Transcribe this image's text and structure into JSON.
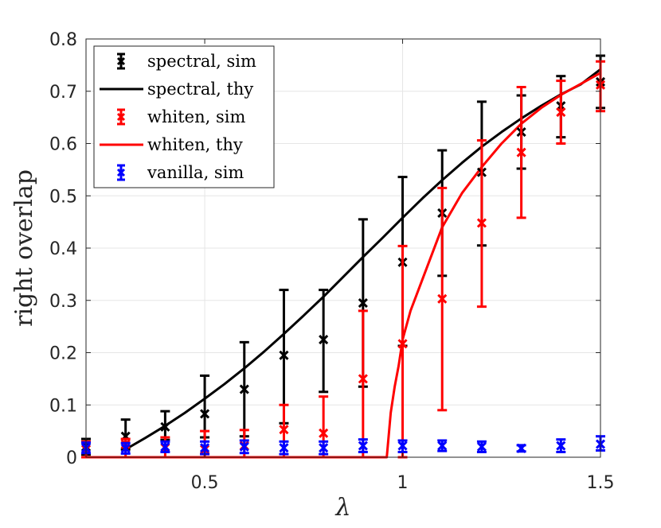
{
  "chart_data": {
    "type": "line",
    "title": "",
    "xlabel": "λ",
    "ylabel": "right overlap",
    "xlim": [
      0.2,
      1.5
    ],
    "ylim": [
      0,
      0.8
    ],
    "xticks": [
      0.5,
      1,
      1.5
    ],
    "xtick_labels": [
      "0.5",
      "1",
      "1.5"
    ],
    "yticks": [
      0,
      0.1,
      0.2,
      0.3,
      0.4,
      0.5,
      0.6,
      0.7,
      0.8
    ],
    "ytick_labels": [
      "0",
      "0.1",
      "0.2",
      "0.3",
      "0.4",
      "0.5",
      "0.6",
      "0.7",
      "0.8"
    ],
    "grid": true,
    "legend_position": "top-left",
    "series": [
      {
        "name": "spectral, sim",
        "kind": "errorbar",
        "color": "#000000",
        "x": [
          0.2,
          0.3,
          0.4,
          0.5,
          0.6,
          0.7,
          0.8,
          0.9,
          1.0,
          1.1,
          1.2,
          1.3,
          1.4,
          1.5
        ],
        "y": [
          0.02,
          0.04,
          0.058,
          0.083,
          0.13,
          0.195,
          0.225,
          0.295,
          0.373,
          0.467,
          0.545,
          0.622,
          0.672,
          0.718
        ],
        "err_low": [
          0.015,
          0.025,
          0.025,
          0.045,
          0.09,
          0.13,
          0.1,
          0.16,
          0.16,
          0.12,
          0.14,
          0.07,
          0.06,
          0.05
        ],
        "err_high": [
          0.015,
          0.032,
          0.03,
          0.073,
          0.09,
          0.125,
          0.095,
          0.16,
          0.163,
          0.12,
          0.135,
          0.07,
          0.057,
          0.05
        ]
      },
      {
        "name": "spectral, thy",
        "kind": "line",
        "color": "#000000",
        "x": [
          0.3,
          0.35,
          0.4,
          0.45,
          0.5,
          0.55,
          0.6,
          0.65,
          0.7,
          0.75,
          0.8,
          0.85,
          0.9,
          0.95,
          1.0,
          1.05,
          1.1,
          1.15,
          1.2,
          1.25,
          1.3,
          1.35,
          1.4,
          1.45,
          1.5
        ],
        "y": [
          0.015,
          0.037,
          0.06,
          0.085,
          0.112,
          0.14,
          0.17,
          0.202,
          0.236,
          0.271,
          0.307,
          0.345,
          0.383,
          0.42,
          0.458,
          0.495,
          0.53,
          0.563,
          0.594,
          0.622,
          0.648,
          0.672,
          0.694,
          0.713,
          0.742
        ]
      },
      {
        "name": "whiten, sim",
        "kind": "errorbar",
        "color": "#ff0000",
        "x": [
          0.2,
          0.3,
          0.4,
          0.5,
          0.6,
          0.7,
          0.8,
          0.9,
          1.0,
          1.1,
          1.2,
          1.3,
          1.4,
          1.5
        ],
        "y": [
          0.015,
          0.025,
          0.018,
          0.015,
          0.022,
          0.053,
          0.046,
          0.15,
          0.217,
          0.303,
          0.448,
          0.583,
          0.66,
          0.712
        ],
        "err_low": [
          0.015,
          0.025,
          0.018,
          0.015,
          0.022,
          0.053,
          0.046,
          0.15,
          0.217,
          0.213,
          0.16,
          0.125,
          0.06,
          0.05
        ],
        "err_high": [
          0.015,
          0.01,
          0.02,
          0.035,
          0.03,
          0.047,
          0.07,
          0.13,
          0.187,
          0.212,
          0.158,
          0.125,
          0.06,
          0.045
        ]
      },
      {
        "name": "whiten, thy",
        "kind": "line",
        "color": "#ff0000",
        "x": [
          0.2,
          0.4,
          0.6,
          0.8,
          0.96,
          0.97,
          0.98,
          0.99,
          1.0,
          1.02,
          1.05,
          1.1,
          1.15,
          1.2,
          1.25,
          1.3,
          1.35,
          1.4,
          1.45,
          1.5
        ],
        "y": [
          0,
          0,
          0,
          0,
          0,
          0.085,
          0.135,
          0.175,
          0.225,
          0.28,
          0.34,
          0.44,
          0.505,
          0.555,
          0.6,
          0.638,
          0.668,
          0.693,
          0.714,
          0.735
        ]
      },
      {
        "name": "vanilla, sim",
        "kind": "errorbar",
        "color": "#0000ff",
        "x": [
          0.2,
          0.3,
          0.4,
          0.5,
          0.6,
          0.7,
          0.8,
          0.9,
          1.0,
          1.1,
          1.2,
          1.3,
          1.4,
          1.5
        ],
        "y": [
          0.018,
          0.017,
          0.02,
          0.018,
          0.02,
          0.018,
          0.018,
          0.022,
          0.022,
          0.022,
          0.02,
          0.017,
          0.022,
          0.025
        ],
        "err_low": [
          0.01,
          0.01,
          0.01,
          0.012,
          0.012,
          0.012,
          0.012,
          0.012,
          0.012,
          0.01,
          0.01,
          0.006,
          0.012,
          0.012
        ],
        "err_high": [
          0.01,
          0.01,
          0.01,
          0.012,
          0.012,
          0.012,
          0.012,
          0.012,
          0.01,
          0.01,
          0.01,
          0.006,
          0.012,
          0.015
        ]
      }
    ],
    "legend": [
      {
        "label": "spectral, sim",
        "color": "#000000",
        "kind": "errorbar"
      },
      {
        "label": "spectral, thy",
        "color": "#000000",
        "kind": "line"
      },
      {
        "label": "whiten, sim",
        "color": "#ff0000",
        "kind": "errorbar"
      },
      {
        "label": "whiten, thy",
        "color": "#ff0000",
        "kind": "line"
      },
      {
        "label": "vanilla, sim",
        "color": "#0000ff",
        "kind": "errorbar"
      }
    ]
  }
}
